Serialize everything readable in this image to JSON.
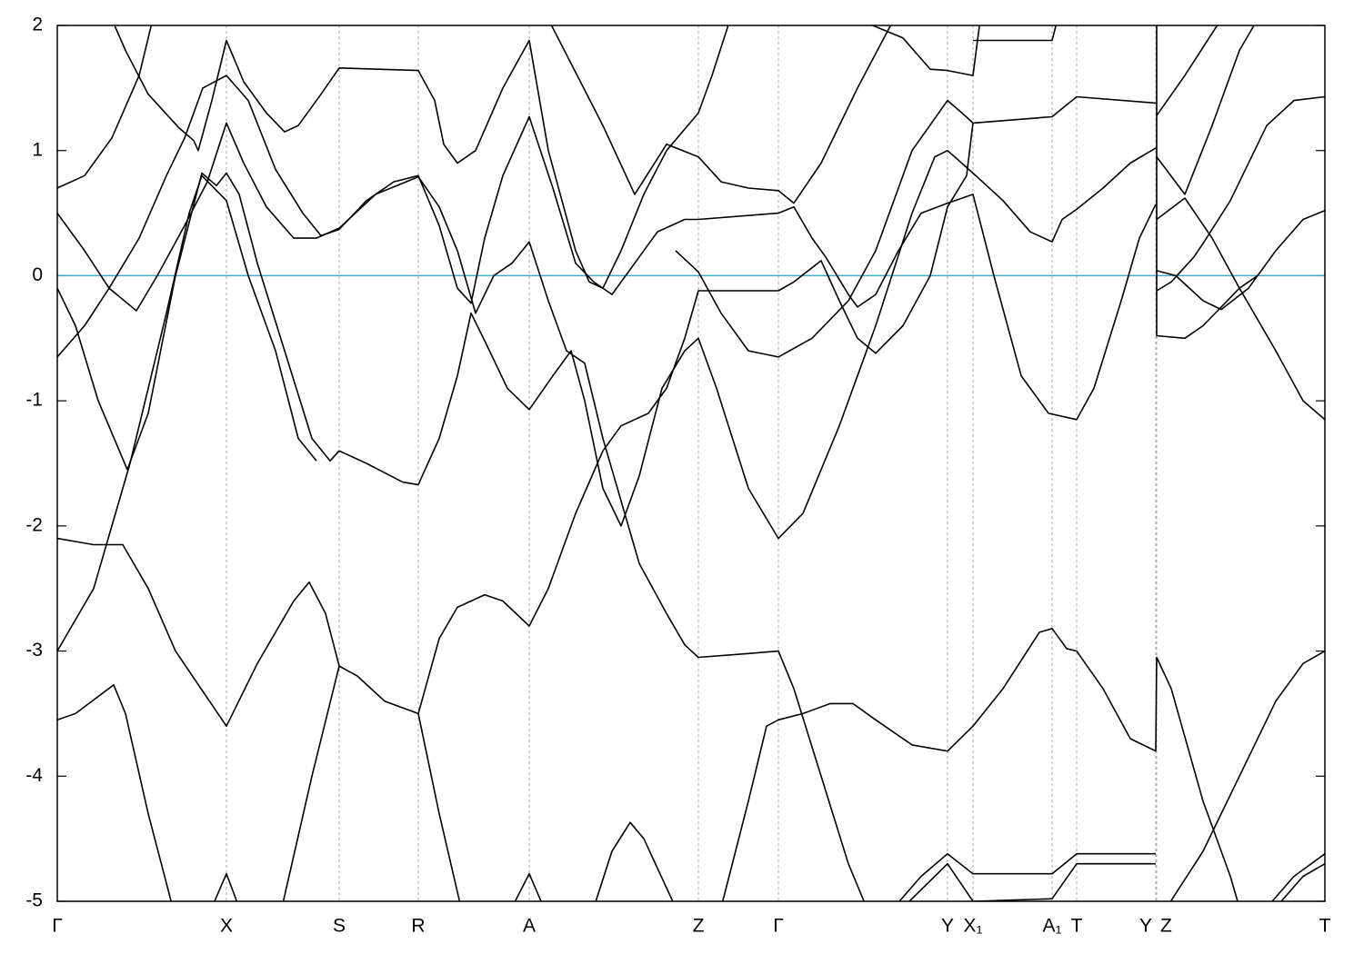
{
  "chart_data": {
    "type": "line",
    "xlim": [
      0,
      1394
    ],
    "ylim": [
      -5,
      2
    ],
    "yticks": [
      2,
      1,
      0,
      -1,
      -2,
      -3,
      -4,
      -5
    ],
    "xticks": [
      {
        "value": 0,
        "label": "Γ"
      },
      {
        "value": 186,
        "label": "X"
      },
      {
        "value": 310,
        "label": "S"
      },
      {
        "value": 397,
        "label": "R"
      },
      {
        "value": 519,
        "label": "A"
      },
      {
        "value": 705,
        "label": "Z"
      },
      {
        "value": 793,
        "label": "Γ"
      },
      {
        "value": 979,
        "label": "Y"
      },
      {
        "value": 1007,
        "label": "X₁"
      },
      {
        "value": 1094,
        "label": "A₁"
      },
      {
        "value": 1121,
        "label": "T"
      },
      {
        "value": 1208,
        "label": "Y"
      },
      {
        "value": 1209,
        "label": "Z"
      },
      {
        "value": 1394,
        "label": "T"
      }
    ],
    "grid": true,
    "hlines": [
      {
        "value": 0,
        "color": "#44aac8"
      }
    ],
    "series": [
      {
        "color": "#000000",
        "x": [
          0,
          30,
          60,
          90,
          105
        ],
        "values": [
          0.7,
          0.8,
          1.1,
          1.6,
          2.05
        ]
      },
      {
        "color": "#000000",
        "x": [
          60,
          75,
          100,
          134,
          150,
          155,
          170,
          186,
          205,
          230,
          250,
          265,
          290,
          310,
          397,
          415,
          425,
          440,
          460,
          490,
          519,
          540,
          570,
          585,
          600,
          620,
          645,
          670,
          705,
          720,
          740
        ],
        "values": [
          2.05,
          1.8,
          1.45,
          1.18,
          1.08,
          1.0,
          1.4,
          1.88,
          1.55,
          1.3,
          1.15,
          1.2,
          1.45,
          1.66,
          1.64,
          1.4,
          1.05,
          0.9,
          1.0,
          1.5,
          1.88,
          1.0,
          0.2,
          -0.05,
          -0.1,
          0.2,
          0.65,
          1.0,
          1.3,
          1.6,
          2.05
        ]
      },
      {
        "color": "#000000",
        "x": [
          0,
          30,
          57,
          90,
          120,
          140,
          160,
          186,
          210,
          240,
          270,
          290,
          310,
          340,
          370,
          397,
          420,
          440,
          455,
          470,
          490,
          519,
          545,
          570,
          590,
          610,
          635,
          660,
          690,
          705,
          793,
          810,
          830,
          845,
          870,
          880,
          900,
          925,
          950,
          979,
          1007,
          1030,
          1060,
          1090,
          1121,
          1140,
          1170,
          1190,
          1208
        ],
        "values": [
          0.5,
          0.2,
          -0.1,
          0.3,
          0.8,
          1.1,
          1.5,
          1.6,
          1.4,
          0.85,
          0.5,
          0.32,
          0.37,
          0.6,
          0.75,
          0.8,
          0.4,
          -0.1,
          -0.22,
          0.3,
          0.8,
          1.27,
          0.7,
          0.1,
          -0.05,
          -0.15,
          0.1,
          0.35,
          0.45,
          0.45,
          0.5,
          0.55,
          0.3,
          0.15,
          -0.15,
          -0.25,
          -0.15,
          0.2,
          0.5,
          0.58,
          0.65,
          0.0,
          -0.8,
          -1.1,
          -1.15,
          -0.9,
          -0.2,
          0.3,
          0.57
        ]
      },
      {
        "color": "#000000",
        "x": [
          0,
          20,
          45,
          77,
          100,
          130,
          159,
          175,
          186,
          200,
          220,
          250,
          280,
          300,
          310,
          340,
          380,
          397,
          420,
          440,
          455,
          470,
          495,
          519,
          545,
          565,
          580,
          600,
          620,
          640,
          665,
          690,
          705,
          725,
          760,
          793,
          820,
          860,
          900,
          940,
          965,
          979,
          1007,
          1040,
          1070,
          1094,
          1105,
          1121,
          1150,
          1180,
          1208
        ],
        "values": [
          -0.1,
          -0.4,
          -1.0,
          -1.55,
          -1.1,
          0.0,
          0.82,
          0.72,
          0.82,
          0.65,
          0.1,
          -0.6,
          -1.3,
          -1.48,
          -1.4,
          -1.5,
          -1.65,
          -1.67,
          -1.3,
          -0.8,
          -0.3,
          -0.52,
          -0.9,
          -1.07,
          -0.8,
          -0.6,
          -1.0,
          -1.7,
          -2.0,
          -1.6,
          -0.9,
          -0.6,
          -0.5,
          -0.9,
          -1.7,
          -2.1,
          -1.9,
          -1.2,
          -0.4,
          0.5,
          0.95,
          1.0,
          0.82,
          0.6,
          0.35,
          0.27,
          0.45,
          0.53,
          0.7,
          0.9,
          1.02
        ]
      },
      {
        "color": "#000000",
        "x": [
          0,
          30,
          57,
          87,
          110,
          140,
          165,
          186,
          205,
          230,
          260,
          285,
          310,
          350,
          397,
          420,
          440,
          460,
          480,
          500,
          519,
          540,
          560,
          580,
          600,
          620,
          640,
          670,
          690,
          705,
          760,
          793,
          810,
          840,
          870,
          890
        ],
        "values": [
          -0.65,
          -0.4,
          -0.1,
          -0.28,
          0.0,
          0.4,
          0.75,
          1.22,
          0.9,
          0.55,
          0.3,
          0.3,
          0.38,
          0.65,
          0.79,
          0.55,
          0.2,
          -0.3,
          0.0,
          0.1,
          0.27,
          -0.2,
          -0.6,
          -0.7,
          -1.3,
          -1.8,
          -2.3,
          -2.7,
          -2.95,
          -3.05,
          -3.02,
          -3.0,
          -3.3,
          -4.0,
          -4.7,
          -5.05
        ]
      },
      {
        "color": "#000000",
        "x": [
          0,
          40,
          72,
          100,
          130,
          186,
          220,
          260,
          277,
          295,
          310,
          330,
          360,
          397,
          420,
          440,
          470,
          490,
          519,
          540,
          570,
          600,
          620,
          650,
          670,
          690,
          705,
          793,
          810,
          840,
          860,
          880,
          900,
          930,
          960,
          979,
          1000,
          1007,
          1094,
          1121,
          1208
        ],
        "values": [
          -2.1,
          -2.15,
          -2.15,
          -2.5,
          -3.0,
          -3.6,
          -3.1,
          -2.6,
          -2.45,
          -2.7,
          -3.12,
          -3.2,
          -3.4,
          -3.5,
          -2.9,
          -2.65,
          -2.55,
          -2.6,
          -2.8,
          -2.5,
          -1.9,
          -1.4,
          -1.2,
          -1.1,
          -0.9,
          -0.5,
          -0.12,
          -0.12,
          -0.05,
          0.12,
          -0.2,
          -0.5,
          -0.62,
          -0.4,
          0.0,
          0.55,
          0.8,
          1.22,
          1.27,
          1.43,
          1.38
        ]
      },
      {
        "color": "#000000",
        "x": [
          0,
          40,
          80,
          120,
          145,
          159,
          186,
          210,
          240,
          265,
          285
        ],
        "values": [
          -3.0,
          -2.5,
          -1.5,
          -0.3,
          0.5,
          0.8,
          0.6,
          0.0,
          -0.6,
          -1.3,
          -1.48
        ]
      },
      {
        "color": "#000000",
        "x": [
          0,
          20,
          62,
          75,
          100,
          127
        ],
        "values": [
          -3.55,
          -3.5,
          -3.27,
          -3.5,
          -4.3,
          -5.05
        ]
      },
      {
        "color": "#000000",
        "x": [
          170,
          186,
          200
        ],
        "values": [
          -5.05,
          -4.78,
          -5.05
        ]
      },
      {
        "color": "#000000",
        "x": [
          247,
          280,
          310,
          null,
          397,
          420,
          444
        ],
        "values": [
          -5.05,
          -4.0,
          -3.12,
          null,
          -3.5,
          -4.3,
          -5.05
        ]
      },
      {
        "color": "#000000",
        "x": [
          500,
          519,
          535
        ],
        "values": [
          -5.05,
          -4.78,
          -5.05
        ]
      },
      {
        "color": "#000000",
        "x": [
          590,
          610,
          630,
          645,
          680
        ],
        "values": [
          -5.05,
          -4.6,
          -4.37,
          -4.5,
          -5.05
        ]
      },
      {
        "color": "#000000",
        "x": [
          730,
          760,
          780,
          793,
          820,
          850,
          875,
          900,
          940,
          979,
          1007,
          1040,
          1080,
          1094,
          1110,
          1121,
          1150,
          1180,
          1208,
          1209,
          1225,
          1260,
          1290,
          1300
        ],
        "values": [
          -5.05,
          -4.2,
          -3.6,
          -3.55,
          -3.5,
          -3.42,
          -3.42,
          -3.55,
          -3.75,
          -3.8,
          -3.6,
          -3.3,
          -2.85,
          -2.82,
          -2.98,
          -3.0,
          -3.3,
          -3.7,
          -3.8,
          -3.05,
          -3.3,
          -4.2,
          -4.8,
          -5.05
        ]
      },
      {
        "color": "#000000",
        "x": [
          540,
          600,
          635,
          670,
          705,
          730,
          760,
          793,
          810,
          840,
          880,
          920
        ],
        "values": [
          2.05,
          1.2,
          0.65,
          1.05,
          0.95,
          0.75,
          0.7,
          0.68,
          0.58,
          0.9,
          1.5,
          2.05
        ]
      },
      {
        "color": "#000000",
        "x": [
          680,
          705,
          730,
          760,
          793,
          830,
          870,
          900,
          940,
          979,
          995,
          1007
        ],
        "values": [
          0.2,
          0.03,
          -0.3,
          -0.6,
          -0.65,
          -0.5,
          -0.2,
          0.2,
          1.0,
          1.4,
          1.3,
          1.22
        ]
      },
      {
        "color": "#000000",
        "x": [
          880,
          930,
          960,
          979,
          1007,
          1015
        ],
        "values": [
          2.05,
          1.9,
          1.65,
          1.64,
          1.6,
          2.05
        ]
      },
      {
        "color": "#000000",
        "x": [
          1007,
          1094,
          1100
        ],
        "values": [
          1.88,
          1.88,
          2.05
        ]
      },
      {
        "color": "#000000",
        "x": [
          920,
          950,
          979,
          1007,
          1094,
          1121,
          1208
        ],
        "values": [
          -5.05,
          -4.8,
          -4.62,
          -4.78,
          -4.78,
          -4.62,
          -4.62
        ]
      },
      {
        "color": "#000000",
        "x": [
          930,
          979,
          1007,
          1094,
          1121,
          1208
        ],
        "values": [
          -5.05,
          -4.7,
          -5.0,
          -4.98,
          -4.7,
          -4.7
        ]
      },
      {
        "color": "#000000",
        "x": [
          1209,
          1240,
          1280
        ],
        "values": [
          1.28,
          1.6,
          2.05
        ]
      },
      {
        "color": "#000000",
        "x": [
          1209,
          1240,
          1270,
          1300,
          1320
        ],
        "values": [
          0.95,
          0.65,
          1.2,
          1.8,
          2.05
        ]
      },
      {
        "color": "#000000",
        "x": [
          1209,
          1240,
          1270,
          1300,
          1340,
          1370,
          1394
        ],
        "values": [
          0.45,
          0.62,
          0.3,
          -0.1,
          -0.6,
          -1.0,
          -1.15
        ]
      },
      {
        "color": "#000000",
        "x": [
          1209,
          1230,
          1260,
          1280,
          1310,
          1340,
          1370,
          1394
        ],
        "values": [
          0.04,
          0.0,
          -0.2,
          -0.27,
          -0.1,
          0.2,
          0.45,
          0.52
        ]
      },
      {
        "color": "#000000",
        "x": [
          1209,
          1225,
          1250,
          1262,
          1290,
          1330,
          1360,
          1394
        ],
        "values": [
          -0.12,
          -0.05,
          0.15,
          0.28,
          0.6,
          1.2,
          1.4,
          1.43
        ]
      },
      {
        "color": "#000000",
        "x": [
          1209,
          1209,
          1240,
          1260,
          1280,
          1300,
          1320
        ],
        "values": [
          2.05,
          -0.48,
          -0.5,
          -0.4,
          -0.25,
          -0.1,
          0.0
        ]
      },
      {
        "color": "#000000",
        "x": [
          1220,
          1260,
          1300,
          1340,
          1370,
          1394
        ],
        "values": [
          -5.05,
          -4.6,
          -4.0,
          -3.4,
          -3.1,
          -3.0
        ]
      },
      {
        "color": "#000000",
        "x": [
          1330,
          1360,
          1394
        ],
        "values": [
          -5.05,
          -4.8,
          -4.62
        ]
      },
      {
        "color": "#000000",
        "x": [
          1340,
          1370,
          1394
        ],
        "values": [
          -5.05,
          -4.8,
          -4.7
        ]
      }
    ]
  }
}
